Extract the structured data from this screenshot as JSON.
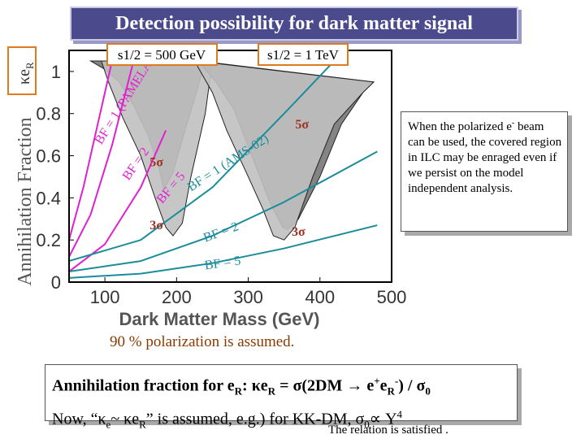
{
  "slide_title": "Detection possibility for dark matter signal",
  "note": {
    "text_part1": "When the polarized e",
    "text_sup": "-",
    "text_part2": " beam can be used, the covered region in ILC may be enraged even if we persist on the model independent analysis."
  },
  "polarization_note": "90 % polarization is assumed.",
  "formula": {
    "line1_a": "Annihilation fraction for e",
    "line1_sub_r": "R",
    "line1_b": ": κe",
    "line1_sub_r2": "R",
    "line1_c": " = σ(2DM → e",
    "line1_sup_plus": "+",
    "line1_d": "e",
    "line1_sub_r3": "R",
    "line1_sup_minus": "-",
    "line1_e": ") / σ",
    "line1_sub_0": "0",
    "line2_a": "Now, “κ",
    "line2_sub_e": "e",
    "line2_b": "~ κe",
    "line2_sub_r": "R",
    "line2_c": "” is assumed, e.g.) for KK-DM, σ",
    "line2_sub_0": "0",
    "line2_d": "∝  Y",
    "line2_sup_4": "4"
  },
  "relation_note": "The relation is satisfied .",
  "chart_data": {
    "type": "line",
    "xlabel": "Dark Matter Mass (GeV)",
    "ylabel": "Annihilation Fraction",
    "ylabel_top": "κe",
    "ylabel_top_sub": "R",
    "xlim": [
      50,
      500
    ],
    "ylim": [
      0,
      1.1
    ],
    "x_ticks": [
      "100",
      "200",
      "300",
      "400",
      "500"
    ],
    "x_tick_values": [
      100,
      200,
      300,
      400,
      500
    ],
    "y_ticks": [
      "0",
      "0.2",
      "0.4",
      "0.6",
      "0.8",
      "1"
    ],
    "y_tick_values": [
      0,
      0.2,
      0.4,
      0.6,
      0.8,
      1.0
    ],
    "energy_labels": [
      "s1/2 = 500 GeV",
      "s1/2 = 1 TeV"
    ],
    "colors": {
      "region_light": "#c0c0c0",
      "region_dark": "#6e6e6e",
      "magenta": "#e020d0",
      "teal": "#1a8c9a",
      "label_orange": "#e07a20",
      "label_red": "#a03020"
    },
    "regions": [
      {
        "name": "",
        "shade": "dark",
        "x": [
          80,
          100,
          120,
          140,
          160,
          175,
          182,
          195,
          210,
          225,
          240
        ],
        "y": [
          1.05,
          1.01,
          0.95,
          0.84,
          0.7,
          0.55,
          0.44,
          0.52,
          0.7,
          0.87,
          1.05
        ]
      },
      {
        "name": "",
        "shade": "light",
        "x": [
          95,
          105,
          125,
          150,
          170,
          185,
          195,
          208,
          220,
          240,
          250
        ],
        "y": [
          1.05,
          0.95,
          0.78,
          0.6,
          0.4,
          0.26,
          0.22,
          0.28,
          0.5,
          0.8,
          1.05
        ]
      },
      {
        "name": "",
        "shade": "dark",
        "x": [
          230,
          255,
          280,
          305,
          330,
          348,
          355,
          370,
          400,
          430,
          460,
          475
        ],
        "y": [
          1.05,
          0.95,
          0.82,
          0.6,
          0.38,
          0.26,
          0.25,
          0.3,
          0.5,
          0.75,
          0.9,
          0.95
        ]
      },
      {
        "name": "",
        "shade": "light",
        "x": [
          225,
          250,
          270,
          300,
          320,
          335,
          350,
          365,
          390,
          420,
          460,
          475
        ],
        "y": [
          1.05,
          0.9,
          0.72,
          0.5,
          0.35,
          0.22,
          0.2,
          0.26,
          0.5,
          0.75,
          0.9,
          0.95
        ]
      }
    ],
    "series": [
      {
        "name": "BF = 1 (PAMELA)",
        "color": "magenta",
        "x": [
          50,
          70,
          90,
          110
        ],
        "y": [
          0.2,
          0.45,
          0.75,
          1.05
        ]
      },
      {
        "name": "BF = 2",
        "color": "magenta",
        "x": [
          50,
          80,
          110,
          140
        ],
        "y": [
          0.12,
          0.32,
          0.65,
          1.05
        ]
      },
      {
        "name": "BF = 5",
        "color": "magenta",
        "x": [
          50,
          100,
          150,
          185
        ],
        "y": [
          0.05,
          0.18,
          0.45,
          0.72
        ]
      },
      {
        "name": "BF = 1 (AMS-02)",
        "color": "teal",
        "x": [
          50,
          150,
          250,
          350,
          420
        ],
        "y": [
          0.1,
          0.2,
          0.45,
          0.8,
          1.05
        ]
      },
      {
        "name": "BF = 2",
        "color": "teal",
        "x": [
          50,
          150,
          250,
          350,
          480
        ],
        "y": [
          0.05,
          0.1,
          0.22,
          0.38,
          0.62
        ]
      },
      {
        "name": "BF = 5",
        "color": "teal",
        "x": [
          50,
          150,
          250,
          350,
          480
        ],
        "y": [
          0.02,
          0.04,
          0.09,
          0.16,
          0.27
        ]
      }
    ],
    "annotations": [
      {
        "text": "5σ",
        "x": 375,
        "y": 0.73,
        "color": "label_red"
      },
      {
        "text": "5σ",
        "x": 172,
        "y": 0.55,
        "color": "label_red"
      },
      {
        "text": "3σ",
        "x": 172,
        "y": 0.25,
        "color": "label_red"
      },
      {
        "text": "3σ",
        "x": 370,
        "y": 0.22,
        "color": "label_red"
      }
    ],
    "curve_labels": [
      {
        "text": "BF = 1 (PAMELA)",
        "x": 95,
        "y": 0.65,
        "color": "magenta",
        "angle": -58
      },
      {
        "text": "BF = 2",
        "x": 133,
        "y": 0.48,
        "color": "magenta",
        "angle": -55
      },
      {
        "text": "BF = 5",
        "x": 180,
        "y": 0.37,
        "color": "magenta",
        "angle": -50
      },
      {
        "text": "BF = 1 (AMS-02)",
        "x": 220,
        "y": 0.43,
        "color": "teal",
        "angle": -33
      },
      {
        "text": "BF = 2",
        "x": 240,
        "y": 0.19,
        "color": "teal",
        "angle": -20
      },
      {
        "text": "BF = 5",
        "x": 240,
        "y": 0.06,
        "color": "teal",
        "angle": -8
      }
    ]
  }
}
